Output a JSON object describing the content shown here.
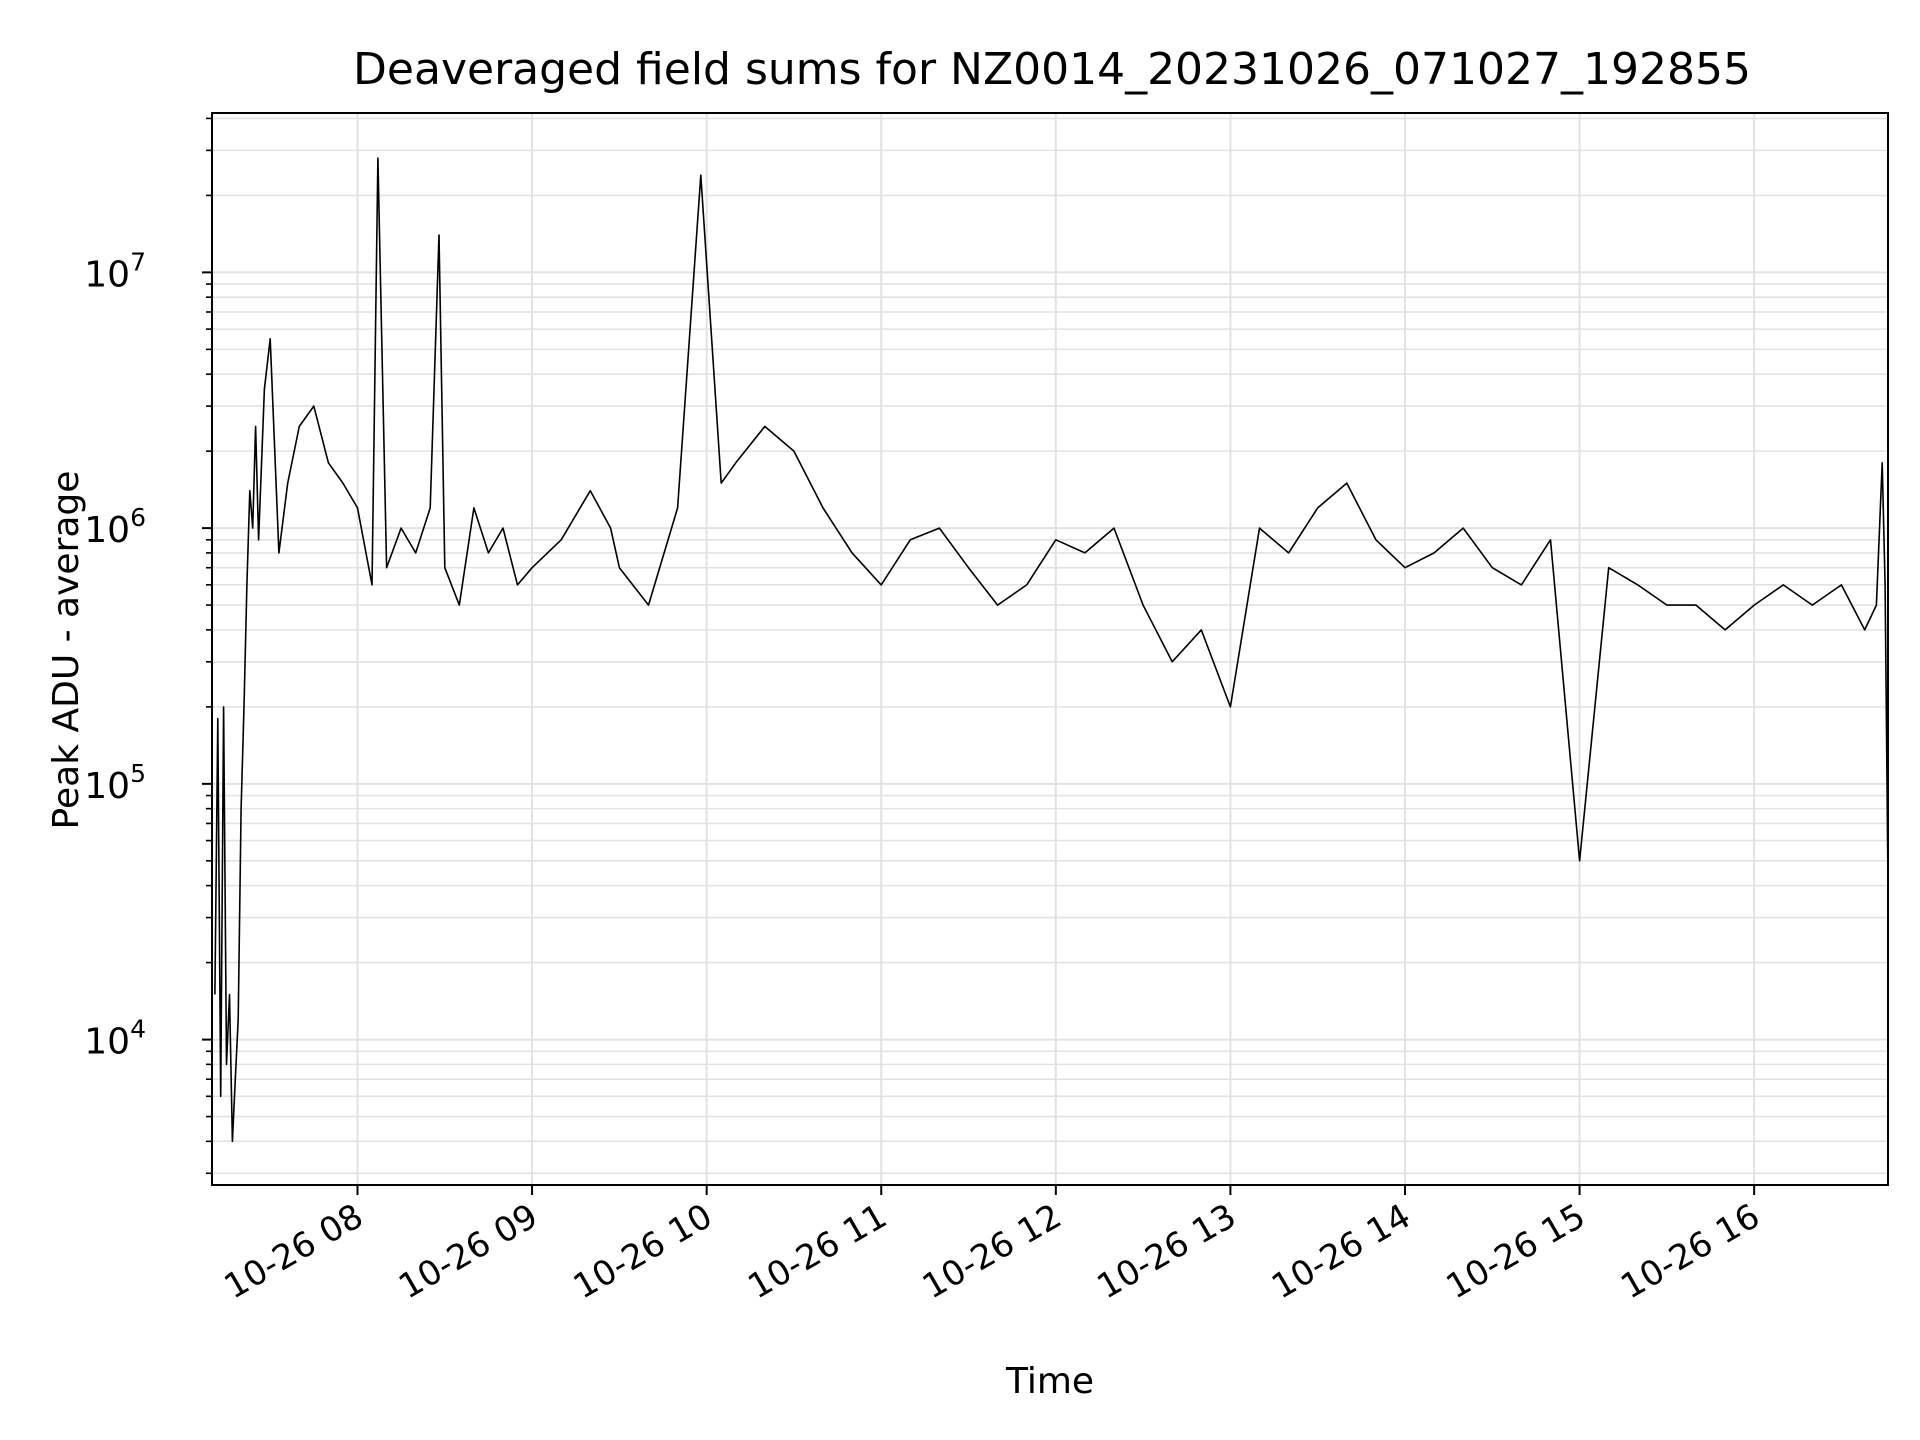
{
  "chart_data": {
    "type": "line",
    "title": "Deaveraged field sums for NZ0014_20231026_071027_192855",
    "xlabel": "Time",
    "ylabel": "Peak ADU - average",
    "y_scale": "log",
    "ylim": [
      2700,
      42000000
    ],
    "xlim": [
      "2023-10-26 07:10",
      "2023-10-26 16:46"
    ],
    "grid": true,
    "line_color": "#000000",
    "x_ticks": [
      {
        "value": "2023-10-26 08:00",
        "label": "10-26 08"
      },
      {
        "value": "2023-10-26 09:00",
        "label": "10-26 09"
      },
      {
        "value": "2023-10-26 10:00",
        "label": "10-26 10"
      },
      {
        "value": "2023-10-26 11:00",
        "label": "10-26 11"
      },
      {
        "value": "2023-10-26 12:00",
        "label": "10-26 12"
      },
      {
        "value": "2023-10-26 13:00",
        "label": "10-26 13"
      },
      {
        "value": "2023-10-26 14:00",
        "label": "10-26 14"
      },
      {
        "value": "2023-10-26 15:00",
        "label": "10-26 15"
      },
      {
        "value": "2023-10-26 16:00",
        "label": "10-26 16"
      }
    ],
    "y_ticks": [
      {
        "value": 10000,
        "base": "10",
        "exp": "4"
      },
      {
        "value": 100000,
        "base": "10",
        "exp": "5"
      },
      {
        "value": 1000000,
        "base": "10",
        "exp": "6"
      },
      {
        "value": 10000000,
        "base": "10",
        "exp": "7"
      }
    ],
    "series": [
      {
        "x": [
          "2023-10-26 07:11",
          "2023-10-26 07:12",
          "2023-10-26 07:13",
          "2023-10-26 07:14",
          "2023-10-26 07:15",
          "2023-10-26 07:16",
          "2023-10-26 07:17",
          "2023-10-26 07:18",
          "2023-10-26 07:19",
          "2023-10-26 07:20",
          "2023-10-26 07:21",
          "2023-10-26 07:22",
          "2023-10-26 07:23",
          "2023-10-26 07:24",
          "2023-10-26 07:25",
          "2023-10-26 07:26",
          "2023-10-26 07:28",
          "2023-10-26 07:30",
          "2023-10-26 07:33",
          "2023-10-26 07:36",
          "2023-10-26 07:40",
          "2023-10-26 07:45",
          "2023-10-26 07:50",
          "2023-10-26 07:55",
          "2023-10-26 08:00",
          "2023-10-26 08:05",
          "2023-10-26 08:07",
          "2023-10-26 08:10",
          "2023-10-26 08:15",
          "2023-10-26 08:20",
          "2023-10-26 08:25",
          "2023-10-26 08:28",
          "2023-10-26 08:30",
          "2023-10-26 08:35",
          "2023-10-26 08:40",
          "2023-10-26 08:45",
          "2023-10-26 08:50",
          "2023-10-26 08:55",
          "2023-10-26 09:00",
          "2023-10-26 09:10",
          "2023-10-26 09:20",
          "2023-10-26 09:27",
          "2023-10-26 09:30",
          "2023-10-26 09:40",
          "2023-10-26 09:50",
          "2023-10-26 09:58",
          "2023-10-26 10:05",
          "2023-10-26 10:10",
          "2023-10-26 10:20",
          "2023-10-26 10:30",
          "2023-10-26 10:40",
          "2023-10-26 10:50",
          "2023-10-26 11:00",
          "2023-10-26 11:10",
          "2023-10-26 11:20",
          "2023-10-26 11:30",
          "2023-10-26 11:40",
          "2023-10-26 11:50",
          "2023-10-26 12:00",
          "2023-10-26 12:10",
          "2023-10-26 12:20",
          "2023-10-26 12:30",
          "2023-10-26 12:40",
          "2023-10-26 12:50",
          "2023-10-26 13:00",
          "2023-10-26 13:10",
          "2023-10-26 13:20",
          "2023-10-26 13:30",
          "2023-10-26 13:40",
          "2023-10-26 13:50",
          "2023-10-26 14:00",
          "2023-10-26 14:10",
          "2023-10-26 14:20",
          "2023-10-26 14:30",
          "2023-10-26 14:40",
          "2023-10-26 14:50",
          "2023-10-26 15:00",
          "2023-10-26 15:10",
          "2023-10-26 15:20",
          "2023-10-26 15:30",
          "2023-10-26 15:40",
          "2023-10-26 15:50",
          "2023-10-26 16:00",
          "2023-10-26 16:10",
          "2023-10-26 16:20",
          "2023-10-26 16:30",
          "2023-10-26 16:38",
          "2023-10-26 16:42",
          "2023-10-26 16:44",
          "2023-10-26 16:45",
          "2023-10-26 16:46"
        ],
        "y": [
          15000,
          180000,
          6000,
          200000,
          8000,
          15000,
          4000,
          7000,
          12000,
          80000,
          200000,
          600000,
          1400000,
          1000000,
          2500000,
          900000,
          3500000,
          5500000,
          800000,
          1500000,
          2500000,
          3000000,
          1800000,
          1500000,
          1200000,
          600000,
          28000000,
          700000,
          1000000,
          800000,
          1200000,
          14000000,
          700000,
          500000,
          1200000,
          800000,
          1000000,
          600000,
          700000,
          900000,
          1400000,
          1000000,
          700000,
          500000,
          1200000,
          24000000,
          1500000,
          1800000,
          2500000,
          2000000,
          1200000,
          800000,
          600000,
          900000,
          1000000,
          700000,
          500000,
          600000,
          900000,
          800000,
          1000000,
          500000,
          300000,
          400000,
          200000,
          1000000,
          800000,
          1200000,
          1500000,
          900000,
          700000,
          800000,
          1000000,
          700000,
          600000,
          900000,
          50000,
          700000,
          600000,
          500000,
          500000,
          400000,
          500000,
          600000,
          500000,
          600000,
          400000,
          500000,
          1800000,
          600000,
          40000
        ]
      }
    ]
  }
}
